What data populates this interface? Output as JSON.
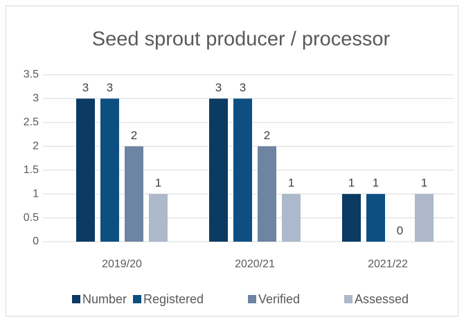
{
  "chart_data": {
    "type": "bar",
    "title": "Seed sprout producer / processor",
    "categories": [
      "2019/20",
      "2020/21",
      "2021/22"
    ],
    "series": [
      {
        "name": "Number",
        "color": "#0b3a63",
        "values": [
          3,
          3,
          1
        ]
      },
      {
        "name": "Registered",
        "color": "#0e4f82",
        "values": [
          3,
          3,
          1
        ]
      },
      {
        "name": "Verified",
        "color": "#6d84a3",
        "values": [
          2,
          2,
          0
        ]
      },
      {
        "name": "Assessed",
        "color": "#adb9ca",
        "values": [
          1,
          1,
          1
        ]
      }
    ],
    "ylim": [
      0,
      3.5
    ],
    "yticks": [
      0,
      0.5,
      1,
      1.5,
      2,
      2.5,
      3,
      3.5
    ],
    "grid": true,
    "legend": "bottom"
  }
}
